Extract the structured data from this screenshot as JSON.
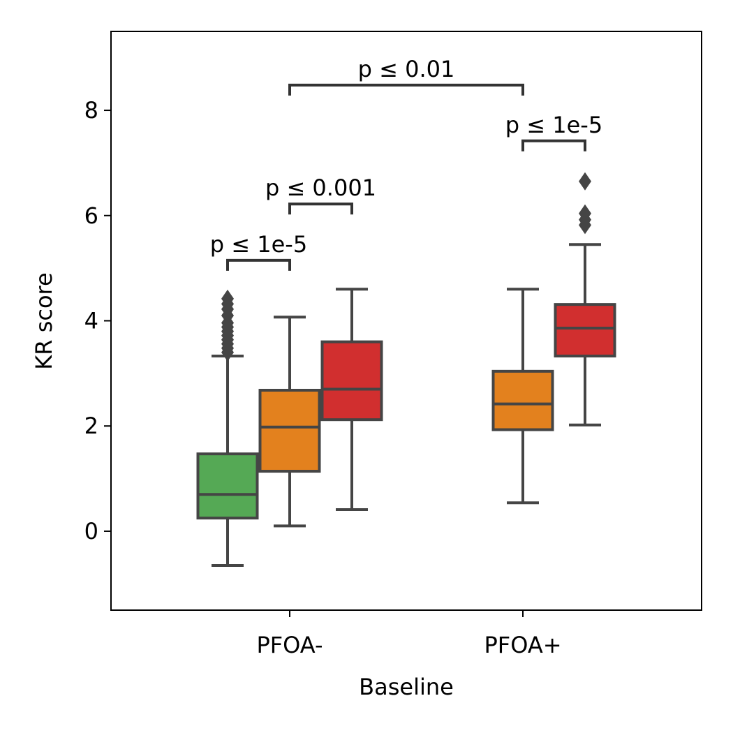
{
  "chart_data": {
    "type": "box",
    "xlabel": "Baseline",
    "ylabel": "KR score",
    "ylim": [
      -1.5,
      9.5
    ],
    "yticks": [
      "0",
      "2",
      "4",
      "6",
      "8"
    ],
    "categories": [
      "PFOA-",
      "PFOA+"
    ],
    "colors": {
      "green": "#55a955",
      "orange": "#e3811e",
      "red": "#d12f2f",
      "line": "#454545"
    },
    "boxes": [
      {
        "category": "PFOA-",
        "offset": -1,
        "color": "#55a955",
        "whislo": -0.65,
        "q1": 0.25,
        "med": 0.7,
        "q3": 1.47,
        "whishi": 3.33,
        "fliers": [
          3.4,
          3.48,
          3.56,
          3.64,
          3.72,
          3.8,
          3.88,
          3.96,
          4.1,
          4.22,
          4.32,
          4.42
        ]
      },
      {
        "category": "PFOA-",
        "offset": 0,
        "color": "#e3811e",
        "whislo": 0.1,
        "q1": 1.14,
        "med": 1.98,
        "q3": 2.68,
        "whishi": 4.07,
        "fliers": []
      },
      {
        "category": "PFOA-",
        "offset": 1,
        "color": "#d12f2f",
        "whislo": 0.41,
        "q1": 2.12,
        "med": 2.7,
        "q3": 3.6,
        "whishi": 4.6,
        "fliers": []
      },
      {
        "category": "PFOA+",
        "offset": 0,
        "color": "#e3811e",
        "whislo": 0.54,
        "q1": 1.93,
        "med": 2.42,
        "q3": 3.04,
        "whishi": 4.6,
        "fliers": []
      },
      {
        "category": "PFOA+",
        "offset": 1,
        "color": "#d12f2f",
        "whislo": 2.02,
        "q1": 3.33,
        "med": 3.86,
        "q3": 4.31,
        "whishi": 5.45,
        "fliers": [
          5.82,
          5.92,
          6.04,
          6.65
        ]
      }
    ],
    "annotations": [
      {
        "label": "p ≤ 1e-5",
        "from": {
          "category": "PFOA-",
          "offset": -1
        },
        "to": {
          "category": "PFOA-",
          "offset": 0
        },
        "y": 5.15
      },
      {
        "label": "p ≤ 0.001",
        "from": {
          "category": "PFOA-",
          "offset": 0
        },
        "to": {
          "category": "PFOA-",
          "offset": 1
        },
        "y": 6.22
      },
      {
        "label": "p ≤ 1e-5",
        "from": {
          "category": "PFOA+",
          "offset": 0
        },
        "to": {
          "category": "PFOA+",
          "offset": 1
        },
        "y": 7.42
      },
      {
        "label": "p ≤ 0.01",
        "from": {
          "category": "PFOA-",
          "offset": 0
        },
        "to": {
          "category": "PFOA+",
          "offset": 0
        },
        "y": 8.48
      }
    ]
  }
}
